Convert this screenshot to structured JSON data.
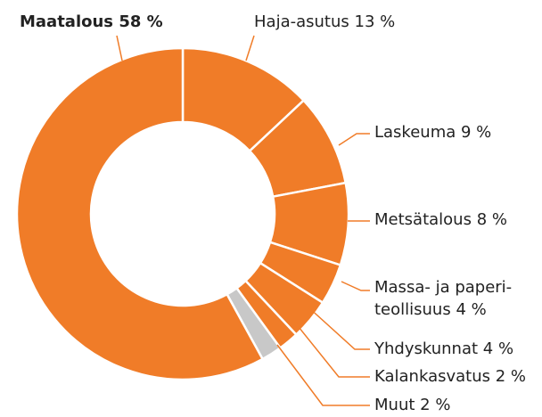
{
  "chart_data": {
    "type": "donut",
    "categories": [
      "Haja-asutus",
      "Laskeuma",
      "Metsätalous",
      "Massa- ja paperi-\nteollisuus",
      "Yhdyskunnat",
      "Kalankasvatus",
      "Muut",
      "Maatalous"
    ],
    "values": [
      13,
      9,
      8,
      4,
      4,
      2,
      2,
      58
    ],
    "value_labels": [
      "13 %",
      "9 %",
      "8 %",
      "4 %",
      "4 %",
      "2 %",
      "2 %",
      "58 %"
    ],
    "colors": [
      "#f07c28",
      "#f07c28",
      "#f07c28",
      "#f07c28",
      "#f07c28",
      "#f07c28",
      "#c8c8c8",
      "#f07c28"
    ]
  }
}
